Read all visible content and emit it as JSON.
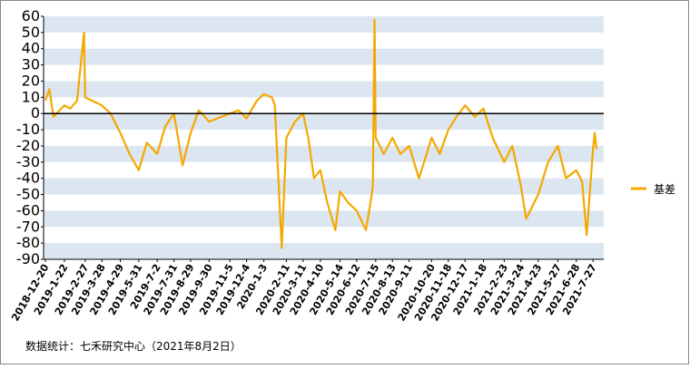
{
  "chart_data": {
    "type": "line",
    "series": [
      {
        "name": "基差",
        "color": "#f5a800",
        "x": [
          "2018-12-20",
          "2018-12-27",
          "2019-1-3",
          "2019-1-22",
          "2019-2-1",
          "2019-2-13",
          "2019-2-25",
          "2019-2-27",
          "2019-3-28",
          "2019-4-12",
          "2019-4-29",
          "2019-5-15",
          "2019-5-31",
          "2019-6-14",
          "2019-7-2",
          "2019-7-16",
          "2019-7-31",
          "2019-8-15",
          "2019-8-29",
          "2019-9-12",
          "2019-9-30",
          "2019-11-5",
          "2019-11-20",
          "2019-12-4",
          "2019-12-22",
          "2020-1-3",
          "2020-1-17",
          "2020-1-22",
          "2020-2-3",
          "2020-2-11",
          "2020-2-26",
          "2020-3-11",
          "2020-3-20",
          "2020-3-30",
          "2020-4-10",
          "2020-4-22",
          "2020-5-6",
          "2020-5-14",
          "2020-5-28",
          "2020-6-12",
          "2020-6-28",
          "2020-7-6",
          "2020-7-10",
          "2020-7-13",
          "2020-7-15",
          "2020-7-29",
          "2020-8-13",
          "2020-8-27",
          "2020-9-11",
          "2020-9-28",
          "2020-10-20",
          "2020-11-3",
          "2020-11-18",
          "2020-12-2",
          "2020-12-17",
          "2021-1-3",
          "2021-1-18",
          "2021-2-3",
          "2021-2-23",
          "2021-3-9",
          "2021-3-24",
          "2021-4-2",
          "2021-4-23",
          "2021-5-10",
          "2021-5-27",
          "2021-6-10",
          "2021-6-28",
          "2021-7-8",
          "2021-7-16",
          "2021-7-27",
          "2021-7-30",
          "2021-8-2"
        ],
        "values": [
          8,
          15,
          -2,
          5,
          3,
          8,
          50,
          10,
          5,
          0,
          -12,
          -25,
          -35,
          -18,
          -25,
          -8,
          0,
          -32,
          -12,
          2,
          -5,
          0,
          2,
          -3,
          8,
          12,
          10,
          5,
          -83,
          -15,
          -5,
          0,
          -15,
          -40,
          -35,
          -55,
          -72,
          -48,
          -55,
          -60,
          -72,
          -55,
          -45,
          58,
          -15,
          -25,
          -15,
          -25,
          -20,
          -40,
          -15,
          -25,
          -10,
          -2,
          5,
          -2,
          3,
          -15,
          -30,
          -20,
          -45,
          -65,
          -50,
          -30,
          -20,
          -40,
          -35,
          -42,
          -75,
          -22,
          -12,
          -22
        ]
      }
    ],
    "xticks": [
      "2018-12-20",
      "2019-1-22",
      "2019-2-27",
      "2019-3-28",
      "2019-4-29",
      "2019-5-31",
      "2019-7-2",
      "2019-7-31",
      "2019-8-29",
      "2019-9-30",
      "2019-11-5",
      "2019-12-4",
      "2020-1-3",
      "2020-2-11",
      "2020-3-11",
      "2020-4-10",
      "2020-5-14",
      "2020-6-12",
      "2020-7-15",
      "2020-8-13",
      "2020-9-11",
      "2020-10-20",
      "2020-11-18",
      "2020-12-17",
      "2021-1-18",
      "2021-2-23",
      "2021-3-24",
      "2021-4-23",
      "2021-5-27",
      "2021-6-28",
      "2021-7-27"
    ],
    "ylim": [
      -90,
      60
    ],
    "yticks": [
      60,
      50,
      40,
      30,
      20,
      10,
      0,
      -10,
      -20,
      -30,
      -40,
      -50,
      -60,
      -70,
      -80,
      -90
    ],
    "grid": true,
    "legend": "right",
    "note": "数据统计：七禾研究中心（2021年8月2日）"
  }
}
